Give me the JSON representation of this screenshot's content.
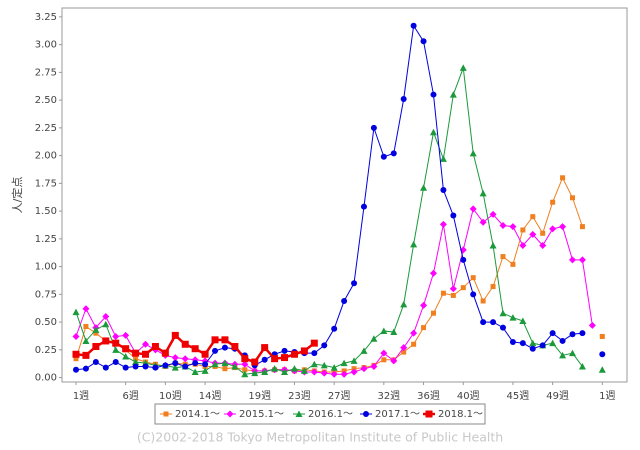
{
  "chart_data": {
    "type": "line",
    "y_label": "人/定点",
    "footer": "(C)2002-2018 Tokyo Metropolitan Institute of Public Health",
    "categories": [
      "1週",
      null,
      null,
      null,
      null,
      "6週",
      null,
      null,
      null,
      "10週",
      null,
      null,
      null,
      "14週",
      null,
      null,
      null,
      null,
      "19週",
      null,
      null,
      null,
      "23週",
      null,
      null,
      null,
      "27週",
      null,
      null,
      null,
      null,
      "32週",
      null,
      null,
      null,
      "36週",
      null,
      null,
      null,
      "40週",
      null,
      null,
      null,
      null,
      "45週",
      null,
      null,
      null,
      "49週",
      null,
      null,
      null,
      null,
      "1週"
    ],
    "ylim": [
      -0.04,
      3.33
    ],
    "yticks": [
      {
        "value": 0,
        "label": "0.00"
      },
      0.25,
      {
        "value": 0.5,
        "label": "0.50"
      },
      0.75,
      {
        "value": 1,
        "label": "1.00"
      },
      1.25,
      {
        "value": 1.5,
        "label": "1.50"
      },
      1.75,
      {
        "value": 2,
        "label": "2.00"
      },
      2.25,
      {
        "value": 2.5,
        "label": "2.50"
      },
      2.75,
      {
        "value": 3,
        "label": "3.00"
      },
      3.25
    ],
    "grid": false,
    "legend": "bottom",
    "series": [
      {
        "name": "2014.1～",
        "color": "#f07f1f",
        "marker": "square",
        "values": [
          0.17,
          0.46,
          0.4,
          0.33,
          0.31,
          0.25,
          0.17,
          0.14,
          0.12,
          0.1,
          0.13,
          0.12,
          0.12,
          0.1,
          0.1,
          0.08,
          0.09,
          0.07,
          0.06,
          0.06,
          0.07,
          0.07,
          0.06,
          0.07,
          0.06,
          0.05,
          0.05,
          0.06,
          0.08,
          0.09,
          0.11,
          0.16,
          0.16,
          0.23,
          0.3,
          0.45,
          0.58,
          0.76,
          0.74,
          0.81,
          0.9,
          0.69,
          0.82,
          1.09,
          1.02,
          1.33,
          1.45,
          1.3,
          1.58,
          1.8,
          1.62,
          1.36,
          null,
          0.37
        ]
      },
      {
        "name": "2015.1～",
        "color": "#ff00ff",
        "marker": "diamond",
        "values": [
          0.37,
          0.62,
          0.45,
          0.55,
          0.37,
          0.38,
          0.22,
          0.3,
          0.25,
          0.2,
          0.18,
          0.17,
          0.16,
          0.15,
          0.13,
          0.13,
          0.12,
          0.12,
          0.06,
          0.06,
          0.07,
          0.07,
          0.06,
          0.05,
          0.05,
          0.04,
          0.03,
          0.03,
          0.05,
          0.08,
          0.1,
          0.22,
          0.15,
          0.27,
          0.4,
          0.65,
          0.94,
          1.38,
          0.8,
          1.15,
          1.52,
          1.4,
          1.47,
          1.37,
          1.36,
          1.19,
          1.29,
          1.19,
          1.34,
          1.36,
          1.06,
          1.06,
          0.47,
          null
        ]
      },
      {
        "name": "2016.1～",
        "color": "#1a9a3a",
        "marker": "triangle",
        "values": [
          0.59,
          0.33,
          0.43,
          0.48,
          0.25,
          0.19,
          0.14,
          0.13,
          0.11,
          0.11,
          0.09,
          0.1,
          0.05,
          0.06,
          0.12,
          0.13,
          0.1,
          0.03,
          0.04,
          0.05,
          0.08,
          0.05,
          0.08,
          0.06,
          0.12,
          0.11,
          0.09,
          0.13,
          0.15,
          0.24,
          0.35,
          0.42,
          0.41,
          0.66,
          1.2,
          1.71,
          2.21,
          1.97,
          2.55,
          2.79,
          2.02,
          1.66,
          1.19,
          0.58,
          0.54,
          0.51,
          0.31,
          0.29,
          0.31,
          0.2,
          0.22,
          0.1,
          null,
          0.07
        ]
      },
      {
        "name": "2017.1～",
        "color": "#0000e0",
        "marker": "circle",
        "values": [
          0.07,
          0.08,
          0.14,
          0.09,
          0.14,
          0.09,
          0.1,
          0.1,
          0.09,
          0.11,
          0.13,
          0.1,
          0.13,
          0.12,
          0.24,
          0.27,
          0.26,
          0.2,
          0.11,
          0.16,
          0.21,
          0.24,
          0.23,
          0.22,
          0.22,
          0.29,
          0.44,
          0.69,
          0.85,
          1.54,
          2.25,
          1.99,
          2.02,
          2.51,
          3.17,
          3.03,
          2.55,
          1.69,
          1.46,
          1.06,
          0.75,
          0.5,
          0.5,
          0.45,
          0.32,
          0.31,
          0.26,
          0.29,
          0.4,
          0.33,
          0.39,
          0.4,
          null,
          0.21
        ]
      },
      {
        "name": "2018.1～",
        "color": "#ee0000",
        "marker": "bigsquare",
        "values": [
          0.21,
          0.2,
          0.28,
          0.33,
          0.31,
          0.26,
          0.22,
          0.21,
          0.28,
          0.22,
          0.38,
          0.3,
          0.26,
          0.21,
          0.34,
          0.34,
          0.28,
          0.17,
          0.14,
          0.27,
          0.17,
          0.18,
          0.21,
          0.24,
          0.31,
          null,
          null,
          null,
          null,
          null,
          null,
          null,
          null,
          null,
          null,
          null,
          null,
          null,
          null,
          null,
          null,
          null,
          null,
          null,
          null,
          null,
          null,
          null,
          null,
          null,
          null,
          null,
          null,
          null
        ]
      }
    ]
  }
}
